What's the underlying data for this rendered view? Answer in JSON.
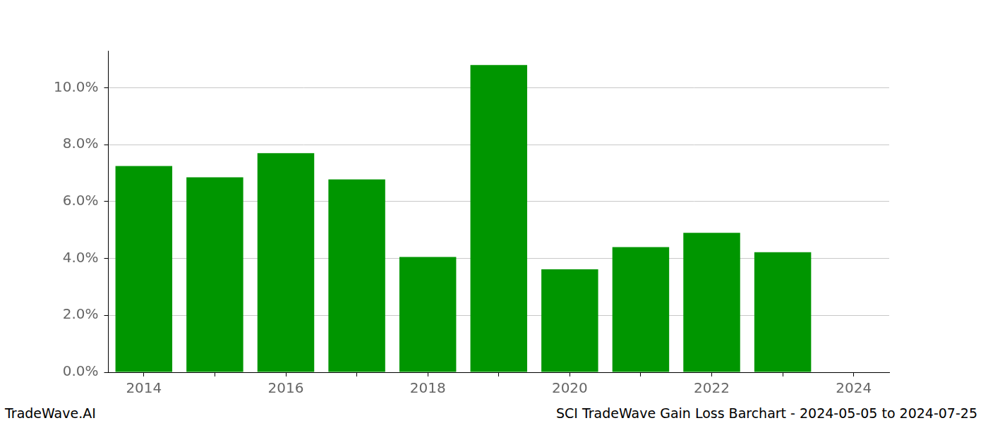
{
  "chart_data": {
    "type": "bar",
    "categories": [
      "2014",
      null,
      "2016",
      null,
      "2018",
      null,
      "2020",
      null,
      "2022",
      null,
      "2024"
    ],
    "values": [
      7.25,
      6.85,
      7.7,
      6.78,
      4.05,
      10.8,
      3.62,
      4.4,
      4.9,
      4.22,
      null
    ],
    "color": "#009600",
    "ylim": [
      0,
      11.3
    ],
    "yticks": [
      {
        "value": 0,
        "label": "0.0%"
      },
      {
        "value": 2,
        "label": "2.0%"
      },
      {
        "value": 4,
        "label": "4.0%"
      },
      {
        "value": 6,
        "label": "6.0%"
      },
      {
        "value": 8,
        "label": "8.0%"
      },
      {
        "value": 10,
        "label": "10.0%"
      }
    ],
    "grid": true,
    "annotations": [
      "TradeWave.AI",
      "SCI TradeWave Gain Loss Barchart - 2024-05-05 to 2024-07-25"
    ]
  }
}
